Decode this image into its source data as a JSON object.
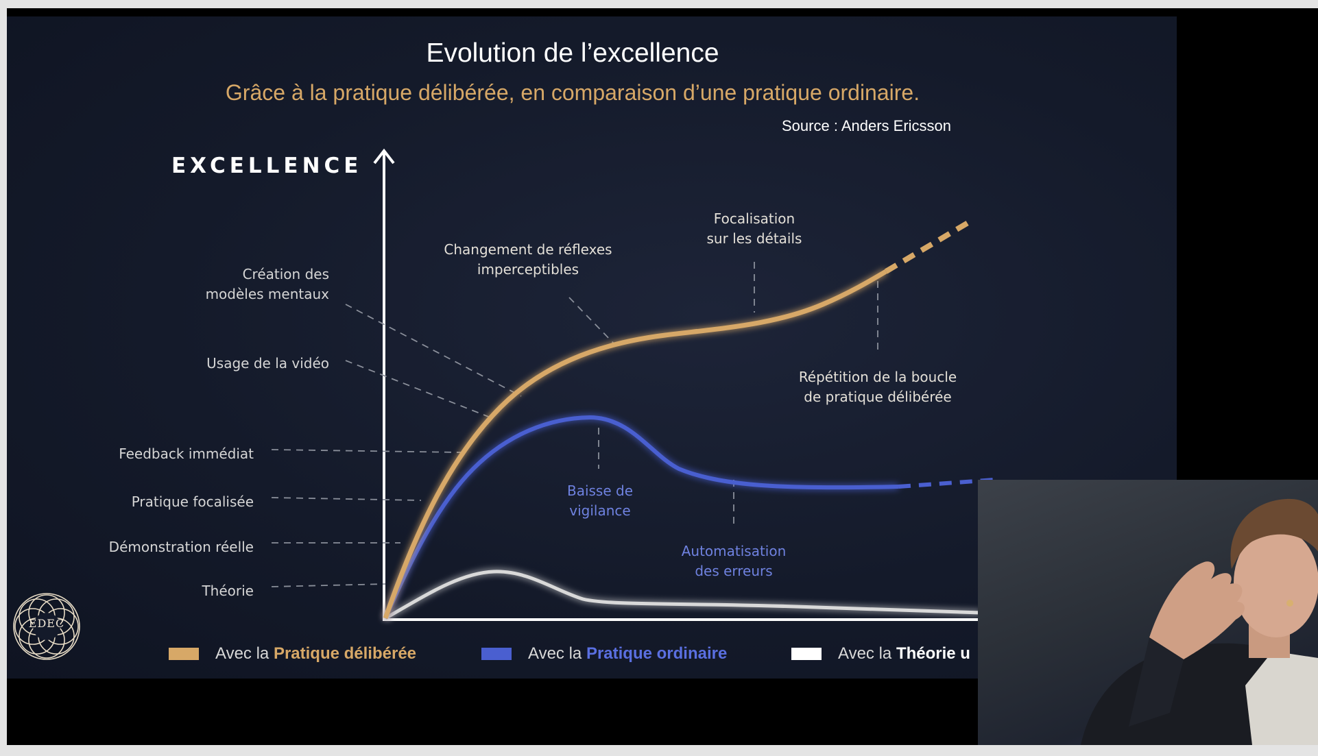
{
  "slide": {
    "title": "Evolution de l’excellence",
    "subtitle": "Grâce à la pratique délibérée, en comparaison d’une pratique ordinaire.",
    "source": "Source : Anders Ericsson",
    "y_axis_label": "EXCELLENCE"
  },
  "stages": [
    {
      "line1": "Création des",
      "line2": "modèles mentaux"
    },
    {
      "line1": "Usage de la vidéo",
      "line2": ""
    },
    {
      "line1": "Feedback immédiat",
      "line2": ""
    },
    {
      "line1": "Pratique focalisée",
      "line2": ""
    },
    {
      "line1": "Démonstration réelle",
      "line2": ""
    },
    {
      "line1": "Théorie",
      "line2": ""
    }
  ],
  "annotations": {
    "reflexes": {
      "line1": "Changement de réflexes",
      "line2": "imperceptibles"
    },
    "details": {
      "line1": "Focalisation",
      "line2": "sur les détails"
    },
    "repetition": {
      "line1": "Répétition de la boucle",
      "line2": "de pratique délibérée"
    },
    "vigilance": {
      "line1": "Baisse de",
      "line2": "vigilance"
    },
    "automation": {
      "line1": "Automatisation",
      "line2": "des erreurs"
    }
  },
  "legend": [
    {
      "prefix": "Avec la ",
      "bold": "Pratique délibérée",
      "color": "#d7a867"
    },
    {
      "prefix": "Avec la ",
      "bold": "Pratique ordinaire",
      "color": "#4a5fd0"
    },
    {
      "prefix": "Avec la ",
      "bold": "Théorie u",
      "color": "#ffffff"
    }
  ],
  "logo": {
    "text": "EDEC"
  },
  "colors": {
    "deliberate": "#d7a867",
    "ordinary": "#4a5fd0",
    "theory": "#d9d9d9",
    "background": "#141a2a"
  },
  "webcam": {
    "description_icon": "presenter-video-icon"
  }
}
